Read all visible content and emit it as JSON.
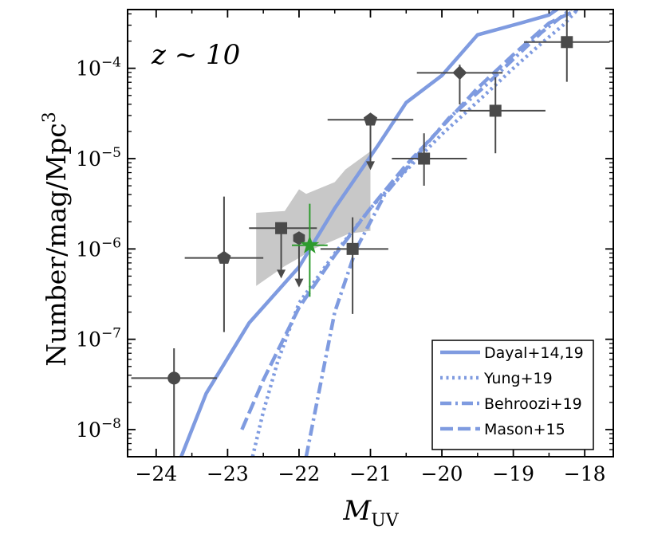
{
  "chart_data": {
    "type": "scatter",
    "title": "",
    "annotation": "z ~ 10",
    "xlabel": "M_UV",
    "ylabel": "Number/mag/Mpc^3",
    "x_scale": "linear",
    "y_scale": "log",
    "xlim": [
      -24.4,
      -17.6
    ],
    "ylim_log10": [
      -8.3,
      -3.35
    ],
    "x_ticks": [
      -24,
      -23,
      -22,
      -21,
      -20,
      -19,
      -18
    ],
    "x_tick_labels": [
      "−24",
      "−23",
      "−22",
      "−21",
      "−20",
      "−19",
      "−18"
    ],
    "y_ticks_log10": [
      -8,
      -7,
      -6,
      -5,
      -4
    ],
    "y_tick_labels": [
      {
        "base": "10",
        "exp": "-8"
      },
      {
        "base": "10",
        "exp": "-7"
      },
      {
        "base": "10",
        "exp": "-6"
      },
      {
        "base": "10",
        "exp": "-5"
      },
      {
        "base": "10",
        "exp": "-4"
      }
    ],
    "legend_position": "bottom-right",
    "colors": {
      "model": "#7f9be0",
      "data": "#4a4a4a",
      "this_work": "#2e9b2e",
      "band": "#c8c8c8"
    },
    "models": [
      {
        "name": "Dayal+14,19",
        "style": "solid",
        "x": [
          -23.65,
          -23.3,
          -22.7,
          -22.0,
          -21.5,
          -20.9,
          -20.5,
          -20.0,
          -19.5,
          -18.9,
          -18.5,
          -18.3
        ],
        "log_y": [
          -8.3,
          -7.6,
          -6.82,
          -6.2,
          -5.55,
          -4.86,
          -4.38,
          -4.08,
          -3.63,
          -3.5,
          -3.41,
          -3.3
        ]
      },
      {
        "name": "Yung+19",
        "style": "dotted",
        "x": [
          -22.65,
          -22.5,
          -22.3,
          -22.0,
          -21.5,
          -21.0,
          -20.5,
          -20.0,
          -19.5,
          -19.0,
          -18.6,
          -18.3,
          -18.1
        ],
        "log_y": [
          -8.3,
          -7.8,
          -7.25,
          -6.6,
          -6.05,
          -5.55,
          -5.13,
          -4.73,
          -4.37,
          -4.0,
          -3.72,
          -3.52,
          -3.35
        ]
      },
      {
        "name": "Behroozi+19",
        "style": "dashdot",
        "x": [
          -21.9,
          -21.7,
          -21.5,
          -21.2,
          -20.8,
          -20.3,
          -19.9,
          -19.4,
          -19.0,
          -18.6,
          -18.2
        ],
        "log_y": [
          -8.3,
          -7.5,
          -6.7,
          -6.0,
          -5.4,
          -4.92,
          -4.55,
          -4.2,
          -3.9,
          -3.6,
          -3.35
        ]
      },
      {
        "name": "Mason+15",
        "style": "dashed",
        "x": [
          -22.8,
          -22.5,
          -22.0,
          -21.5,
          -21.0,
          -20.5,
          -20.0,
          -19.5,
          -19.0,
          -18.5,
          -18.1
        ],
        "log_y": [
          -8.0,
          -7.45,
          -6.65,
          -6.07,
          -5.55,
          -5.07,
          -4.65,
          -4.22,
          -3.85,
          -3.5,
          -3.35
        ]
      }
    ],
    "band": {
      "name": "gray constraint region",
      "upper": {
        "x": [
          -22.6,
          -22.2,
          -22.0,
          -21.9,
          -21.5,
          -21.35,
          -21.0
        ],
        "log_y": [
          -5.6,
          -5.58,
          -5.34,
          -5.39,
          -5.26,
          -5.12,
          -4.92
        ]
      },
      "lower": {
        "x": [
          -22.6,
          -22.2,
          -22.0,
          -21.8,
          -21.5,
          -21.3,
          -21.0
        ],
        "log_y": [
          -6.41,
          -6.19,
          -6.1,
          -6.0,
          -5.9,
          -5.83,
          -5.8
        ]
      }
    },
    "points": [
      {
        "marker": "circle",
        "x": -23.75,
        "log_y": -7.43,
        "xerr": [
          0.6,
          0.6
        ],
        "log_y_lo": -8.6,
        "log_y_hi": -7.1,
        "upper_limit": false
      },
      {
        "marker": "pentagon",
        "x": -23.05,
        "log_y": -6.1,
        "xerr": [
          0.55,
          0.55
        ],
        "log_y_lo": -6.92,
        "log_y_hi": -5.42,
        "upper_limit": false
      },
      {
        "marker": "square",
        "x": -22.25,
        "log_y": -5.77,
        "xerr": [
          0.45,
          0.5
        ],
        "upper_limit": true,
        "log_y_arrow": -6.3
      },
      {
        "marker": "hexagon",
        "x": -22.0,
        "log_y": -5.88,
        "xerr": [
          0.0,
          0.0
        ],
        "upper_limit": true,
        "log_y_arrow": -6.4
      },
      {
        "marker": "square",
        "x": -21.25,
        "log_y": -6.0,
        "xerr": [
          0.45,
          0.5
        ],
        "log_y_lo": -6.72,
        "log_y_hi": -5.65,
        "upper_limit": false
      },
      {
        "marker": "pentagon",
        "x": -21.0,
        "log_y": -4.57,
        "xerr": [
          0.6,
          0.6
        ],
        "upper_limit": true,
        "log_y_arrow": -5.1
      },
      {
        "marker": "square",
        "x": -20.25,
        "log_y": -5.0,
        "xerr": [
          0.45,
          0.6
        ],
        "log_y_lo": -5.3,
        "log_y_hi": -4.72,
        "upper_limit": false
      },
      {
        "marker": "diamond",
        "x": -19.75,
        "log_y": -4.05,
        "xerr": [
          0.6,
          0.6
        ],
        "log_y_lo": -4.4,
        "log_y_hi": -3.96,
        "upper_limit": false
      },
      {
        "marker": "square",
        "x": -19.25,
        "log_y": -4.47,
        "xerr": [
          0.5,
          0.7
        ],
        "log_y_lo": -4.94,
        "log_y_hi": -4.1,
        "upper_limit": false
      },
      {
        "marker": "square",
        "x": -18.25,
        "log_y": -3.71,
        "xerr": [
          0.6,
          0.6
        ],
        "log_y_lo": -4.15,
        "log_y_hi": -3.3,
        "upper_limit": false
      }
    ],
    "this_work": {
      "marker": "star",
      "x": -21.85,
      "log_y": -5.96,
      "xerr": [
        0.25,
        0.25
      ],
      "log_y_lo": -6.53,
      "log_y_hi": -5.5
    }
  }
}
